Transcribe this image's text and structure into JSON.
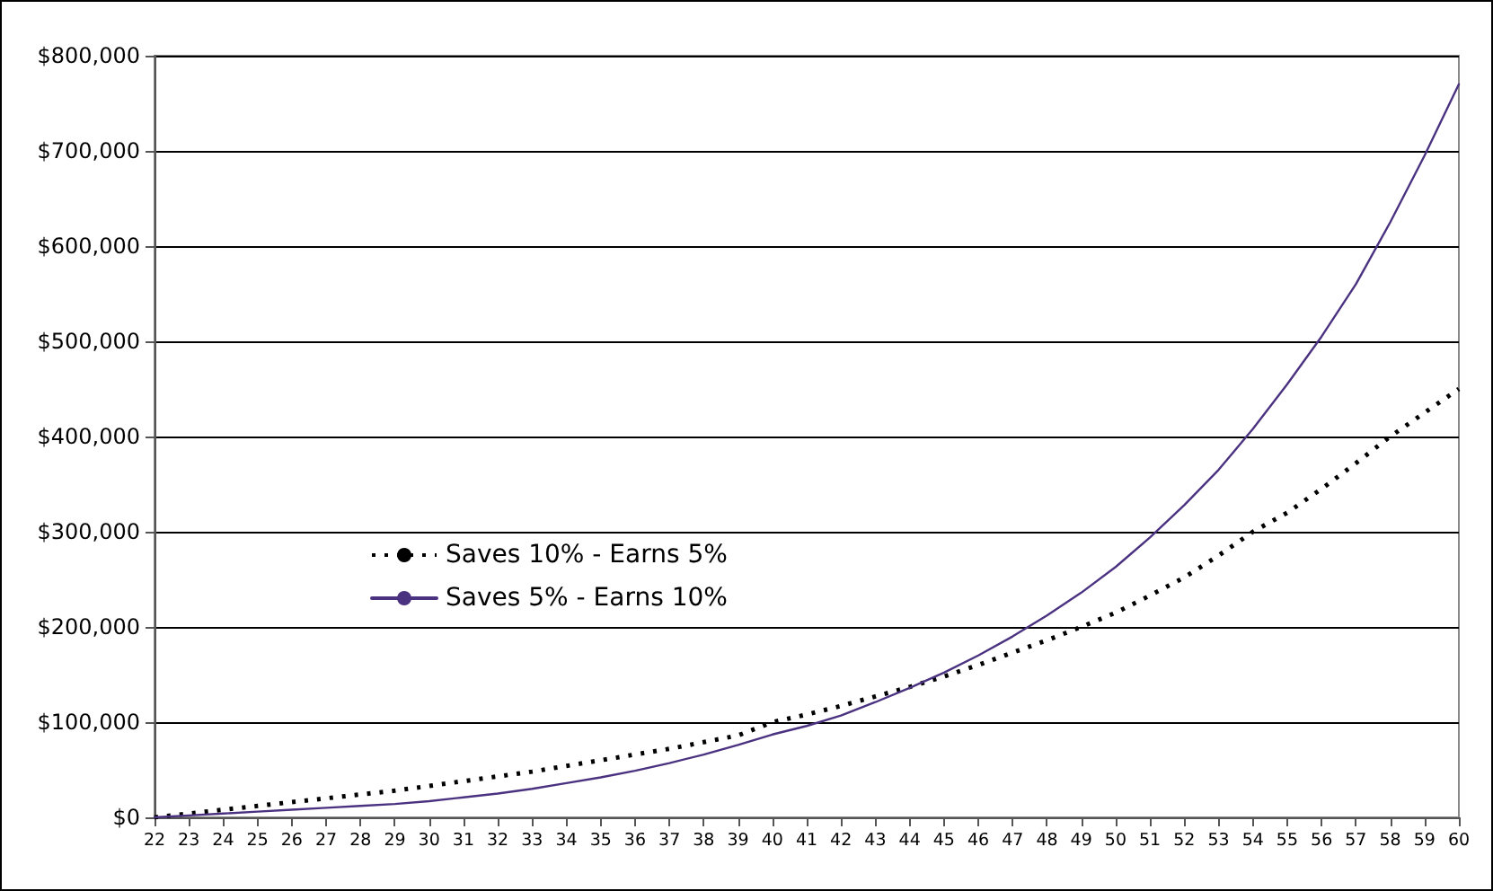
{
  "chart_data": {
    "type": "line",
    "categories": [
      "22",
      "23",
      "24",
      "25",
      "26",
      "27",
      "28",
      "29",
      "30",
      "31",
      "32",
      "33",
      "34",
      "35",
      "36",
      "37",
      "38",
      "39",
      "40",
      "41",
      "42",
      "43",
      "44",
      "45",
      "46",
      "47",
      "48",
      "49",
      "50",
      "51",
      "52",
      "53",
      "54",
      "55",
      "56",
      "57",
      "58",
      "59",
      "60"
    ],
    "series": [
      {
        "name": "Saves 10% - Earns 5%",
        "color": "#000000",
        "line_style": "dotted",
        "values": [
          0,
          4000,
          8000,
          12000,
          16000,
          20000,
          24000,
          28000,
          33000,
          38000,
          43000,
          48000,
          54000,
          60000,
          66000,
          72000,
          79000,
          86000,
          100000,
          108000,
          117000,
          127000,
          137000,
          148000,
          160000,
          173000,
          186000,
          200000,
          215000,
          233000,
          252000,
          275000,
          300000,
          320000,
          345000,
          372000,
          400000,
          425000,
          450000
        ]
      },
      {
        "name": "Saves 5% - Earns 10%",
        "color": "#4b3281",
        "line_style": "solid",
        "values": [
          0,
          2000,
          4000,
          6000,
          8000,
          10000,
          12000,
          14000,
          17000,
          21000,
          25000,
          30000,
          36000,
          42000,
          49000,
          57000,
          66000,
          76000,
          87000,
          96000,
          107000,
          121000,
          136000,
          152000,
          170000,
          190000,
          212000,
          236000,
          263000,
          294000,
          328000,
          365000,
          408000,
          455000,
          505000,
          560000,
          625000,
          695000,
          770000
        ]
      }
    ],
    "ylim": [
      0,
      800000
    ],
    "yticks": [
      {
        "value": 0,
        "label": "$0"
      },
      {
        "value": 100000,
        "label": "$100,000"
      },
      {
        "value": 200000,
        "label": "$200,000"
      },
      {
        "value": 300000,
        "label": "$300,000"
      },
      {
        "value": 400000,
        "label": "$400,000"
      },
      {
        "value": 500000,
        "label": "$500,000"
      },
      {
        "value": 600000,
        "label": "$600,000"
      },
      {
        "value": 700000,
        "label": "$700,000"
      },
      {
        "value": 800000,
        "label": "$800,000"
      }
    ],
    "grid": "y",
    "legend": "center left",
    "marker": "none"
  }
}
